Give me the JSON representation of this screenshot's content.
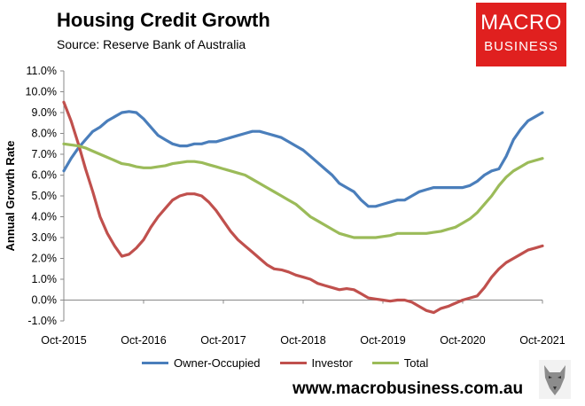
{
  "header": {
    "title": "Housing Credit Growth",
    "subtitle": "Source: Reserve Bank of Australia"
  },
  "logo": {
    "line1": "MACRO",
    "line2": "BUSINESS"
  },
  "footer": {
    "website": "www.macrobusiness.com.au"
  },
  "colors": {
    "owner": "#4a7ebb",
    "investor": "#c0504d",
    "total": "#9bbb59"
  },
  "chart_data": {
    "type": "line",
    "ylabel": "Annual Growth Rate",
    "xlabel": "",
    "ylim": [
      -1.0,
      11.0
    ],
    "ystep": 1.0,
    "grid": false,
    "legend_position": "bottom",
    "x_tick_labels": [
      "Oct-2015",
      "Oct-2016",
      "Oct-2017",
      "Oct-2018",
      "Oct-2019",
      "Oct-2020",
      "Oct-2021"
    ],
    "x_start": "2015-10",
    "x_end": "2021-10",
    "series": [
      {
        "name": "Owner-Occupied",
        "points": [
          [
            0,
            6.2
          ],
          [
            1,
            6.8
          ],
          [
            2,
            7.3
          ],
          [
            3,
            7.7
          ],
          [
            4,
            8.1
          ],
          [
            5,
            8.3
          ],
          [
            6,
            8.6
          ],
          [
            7,
            8.8
          ],
          [
            8,
            9.0
          ],
          [
            9,
            9.05
          ],
          [
            10,
            9.0
          ],
          [
            11,
            8.7
          ],
          [
            12,
            8.3
          ],
          [
            13,
            7.9
          ],
          [
            14,
            7.7
          ],
          [
            15,
            7.5
          ],
          [
            16,
            7.4
          ],
          [
            17,
            7.4
          ],
          [
            18,
            7.5
          ],
          [
            19,
            7.5
          ],
          [
            20,
            7.6
          ],
          [
            21,
            7.6
          ],
          [
            22,
            7.7
          ],
          [
            23,
            7.8
          ],
          [
            24,
            7.9
          ],
          [
            25,
            8.0
          ],
          [
            26,
            8.1
          ],
          [
            27,
            8.1
          ],
          [
            28,
            8.0
          ],
          [
            29,
            7.9
          ],
          [
            30,
            7.8
          ],
          [
            31,
            7.6
          ],
          [
            32,
            7.4
          ],
          [
            33,
            7.2
          ],
          [
            34,
            6.9
          ],
          [
            35,
            6.6
          ],
          [
            36,
            6.3
          ],
          [
            37,
            6.0
          ],
          [
            38,
            5.6
          ],
          [
            39,
            5.4
          ],
          [
            40,
            5.2
          ],
          [
            41,
            4.8
          ],
          [
            42,
            4.5
          ],
          [
            43,
            4.5
          ],
          [
            44,
            4.6
          ],
          [
            45,
            4.7
          ],
          [
            46,
            4.8
          ],
          [
            47,
            4.8
          ],
          [
            48,
            5.0
          ],
          [
            49,
            5.2
          ],
          [
            50,
            5.3
          ],
          [
            51,
            5.4
          ],
          [
            52,
            5.4
          ],
          [
            53,
            5.4
          ],
          [
            54,
            5.4
          ],
          [
            55,
            5.4
          ],
          [
            56,
            5.5
          ],
          [
            57,
            5.7
          ],
          [
            58,
            6.0
          ],
          [
            59,
            6.2
          ],
          [
            60,
            6.3
          ],
          [
            61,
            6.9
          ],
          [
            62,
            7.7
          ],
          [
            63,
            8.2
          ],
          [
            64,
            8.6
          ],
          [
            65,
            8.8
          ],
          [
            66,
            9.0
          ]
        ]
      },
      {
        "name": "Investor",
        "points": [
          [
            0,
            9.5
          ],
          [
            1,
            8.6
          ],
          [
            2,
            7.5
          ],
          [
            3,
            6.3
          ],
          [
            4,
            5.2
          ],
          [
            5,
            4.0
          ],
          [
            6,
            3.2
          ],
          [
            7,
            2.6
          ],
          [
            8,
            2.1
          ],
          [
            9,
            2.2
          ],
          [
            10,
            2.5
          ],
          [
            11,
            2.9
          ],
          [
            12,
            3.5
          ],
          [
            13,
            4.0
          ],
          [
            14,
            4.4
          ],
          [
            15,
            4.8
          ],
          [
            16,
            5.0
          ],
          [
            17,
            5.1
          ],
          [
            18,
            5.1
          ],
          [
            19,
            5.0
          ],
          [
            20,
            4.7
          ],
          [
            21,
            4.3
          ],
          [
            22,
            3.8
          ],
          [
            23,
            3.3
          ],
          [
            24,
            2.9
          ],
          [
            25,
            2.6
          ],
          [
            26,
            2.3
          ],
          [
            27,
            2.0
          ],
          [
            28,
            1.7
          ],
          [
            29,
            1.5
          ],
          [
            30,
            1.45
          ],
          [
            31,
            1.35
          ],
          [
            32,
            1.2
          ],
          [
            33,
            1.1
          ],
          [
            34,
            1.0
          ],
          [
            35,
            0.8
          ],
          [
            36,
            0.7
          ],
          [
            37,
            0.6
          ],
          [
            38,
            0.5
          ],
          [
            39,
            0.55
          ],
          [
            40,
            0.5
          ],
          [
            41,
            0.3
          ],
          [
            42,
            0.1
          ],
          [
            43,
            0.05
          ],
          [
            44,
            0.0
          ],
          [
            45,
            -0.05
          ],
          [
            46,
            0.0
          ],
          [
            47,
            0.0
          ],
          [
            48,
            -0.1
          ],
          [
            49,
            -0.3
          ],
          [
            50,
            -0.5
          ],
          [
            51,
            -0.6
          ],
          [
            52,
            -0.4
          ],
          [
            53,
            -0.3
          ],
          [
            54,
            -0.15
          ],
          [
            55,
            0.0
          ],
          [
            56,
            0.1
          ],
          [
            57,
            0.2
          ],
          [
            58,
            0.6
          ],
          [
            59,
            1.1
          ],
          [
            60,
            1.5
          ],
          [
            61,
            1.8
          ],
          [
            62,
            2.0
          ],
          [
            63,
            2.2
          ],
          [
            64,
            2.4
          ],
          [
            65,
            2.5
          ],
          [
            66,
            2.6
          ]
        ]
      },
      {
        "name": "Total",
        "points": [
          [
            0,
            7.5
          ],
          [
            1,
            7.45
          ],
          [
            2,
            7.4
          ],
          [
            3,
            7.3
          ],
          [
            4,
            7.15
          ],
          [
            5,
            7.0
          ],
          [
            6,
            6.85
          ],
          [
            7,
            6.7
          ],
          [
            8,
            6.55
          ],
          [
            9,
            6.5
          ],
          [
            10,
            6.4
          ],
          [
            11,
            6.35
          ],
          [
            12,
            6.35
          ],
          [
            13,
            6.4
          ],
          [
            14,
            6.45
          ],
          [
            15,
            6.55
          ],
          [
            16,
            6.6
          ],
          [
            17,
            6.65
          ],
          [
            18,
            6.65
          ],
          [
            19,
            6.6
          ],
          [
            20,
            6.5
          ],
          [
            21,
            6.4
          ],
          [
            22,
            6.3
          ],
          [
            23,
            6.2
          ],
          [
            24,
            6.1
          ],
          [
            25,
            6.0
          ],
          [
            26,
            5.8
          ],
          [
            27,
            5.6
          ],
          [
            28,
            5.4
          ],
          [
            29,
            5.2
          ],
          [
            30,
            5.0
          ],
          [
            31,
            4.8
          ],
          [
            32,
            4.6
          ],
          [
            33,
            4.3
          ],
          [
            34,
            4.0
          ],
          [
            35,
            3.8
          ],
          [
            36,
            3.6
          ],
          [
            37,
            3.4
          ],
          [
            38,
            3.2
          ],
          [
            39,
            3.1
          ],
          [
            40,
            3.0
          ],
          [
            41,
            3.0
          ],
          [
            42,
            3.0
          ],
          [
            43,
            3.0
          ],
          [
            44,
            3.05
          ],
          [
            45,
            3.1
          ],
          [
            46,
            3.2
          ],
          [
            47,
            3.2
          ],
          [
            48,
            3.2
          ],
          [
            49,
            3.2
          ],
          [
            50,
            3.2
          ],
          [
            51,
            3.25
          ],
          [
            52,
            3.3
          ],
          [
            53,
            3.4
          ],
          [
            54,
            3.5
          ],
          [
            55,
            3.7
          ],
          [
            56,
            3.9
          ],
          [
            57,
            4.2
          ],
          [
            58,
            4.6
          ],
          [
            59,
            5.0
          ],
          [
            60,
            5.5
          ],
          [
            61,
            5.9
          ],
          [
            62,
            6.2
          ],
          [
            63,
            6.4
          ],
          [
            64,
            6.6
          ],
          [
            65,
            6.7
          ],
          [
            66,
            6.8
          ]
        ]
      }
    ]
  }
}
